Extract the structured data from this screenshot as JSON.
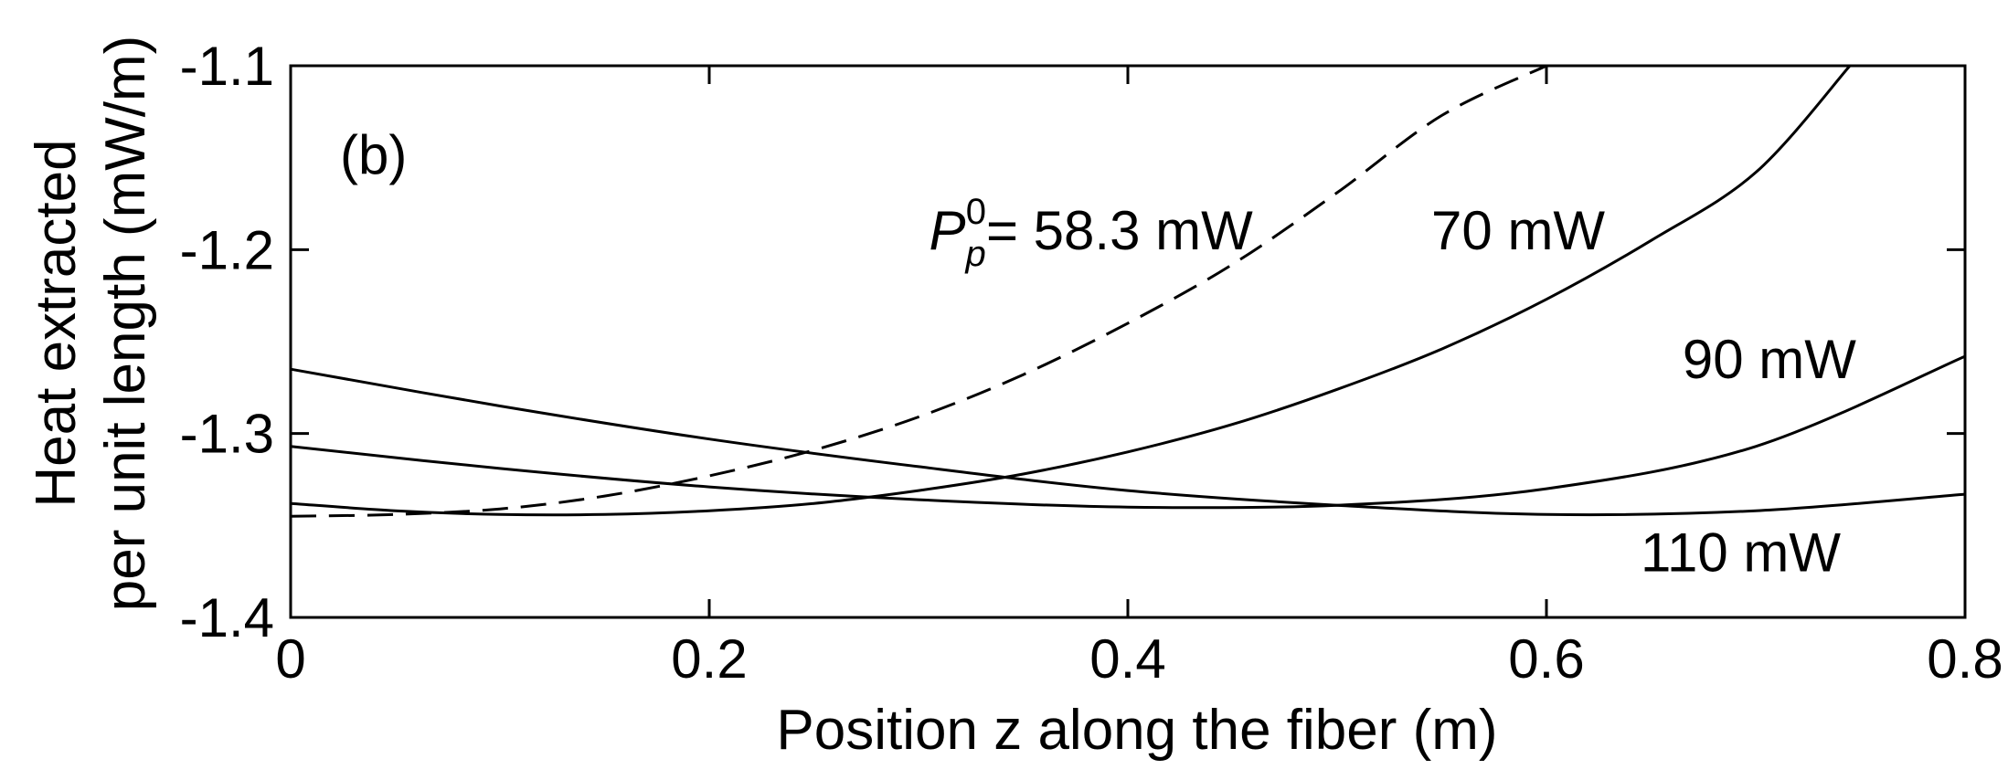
{
  "chart_data": {
    "type": "line",
    "panel_label": "(b)",
    "xlabel": "Position z along the fiber (m)",
    "ylabel_lines": [
      "Heat extracted",
      "per unit length (mW/m)"
    ],
    "xlim": [
      0,
      0.8
    ],
    "ylim": [
      -1.4,
      -1.1
    ],
    "xticks": [
      0,
      0.2,
      0.4,
      0.6,
      0.8
    ],
    "xtick_labels": [
      "0",
      "0.2",
      "0.4",
      "0.6",
      "0.8"
    ],
    "yticks": [
      -1.4,
      -1.3,
      -1.2,
      -1.1
    ],
    "ytick_labels": [
      "-1.4",
      "-1.3",
      "-1.2",
      "-1.1"
    ],
    "grid": false,
    "series": [
      {
        "name": "58.3 mW",
        "dashed": true,
        "x": [
          0,
          0.05,
          0.1,
          0.15,
          0.2,
          0.25,
          0.3,
          0.35,
          0.4,
          0.45,
          0.5,
          0.55,
          0.6
        ],
        "y": [
          -1.345,
          -1.344,
          -1.341,
          -1.334,
          -1.323,
          -1.309,
          -1.291,
          -1.268,
          -1.24,
          -1.208,
          -1.169,
          -1.127,
          -1.1
        ]
      },
      {
        "name": "70 mW",
        "dashed": false,
        "x": [
          0,
          0.05,
          0.1,
          0.15,
          0.2,
          0.25,
          0.3,
          0.35,
          0.4,
          0.45,
          0.5,
          0.55,
          0.6,
          0.65,
          0.7,
          0.745
        ],
        "y": [
          -1.338,
          -1.342,
          -1.344,
          -1.344,
          -1.342,
          -1.338,
          -1.331,
          -1.322,
          -1.31,
          -1.295,
          -1.276,
          -1.254,
          -1.227,
          -1.195,
          -1.158,
          -1.1
        ]
      },
      {
        "name": "90 mW",
        "dashed": false,
        "x": [
          0,
          0.1,
          0.2,
          0.3,
          0.4,
          0.5,
          0.6,
          0.7,
          0.8
        ],
        "y": [
          -1.307,
          -1.319,
          -1.329,
          -1.336,
          -1.34,
          -1.339,
          -1.33,
          -1.307,
          -1.258
        ]
      },
      {
        "name": "110 mW",
        "dashed": false,
        "x": [
          0,
          0.1,
          0.2,
          0.3,
          0.4,
          0.5,
          0.6,
          0.7,
          0.8
        ],
        "y": [
          -1.265,
          -1.285,
          -1.303,
          -1.318,
          -1.331,
          -1.339,
          -1.344,
          -1.342,
          -1.333
        ]
      }
    ],
    "annotations": [
      {
        "text_p": "P",
        "text_sub": "p",
        "text_sup": "0",
        "text_rest": "= 58.3 mW",
        "x": 0.305,
        "y": -1.19
      },
      {
        "text": "70 mW",
        "x": 0.545,
        "y": -1.19
      },
      {
        "text": "90 mW",
        "x": 0.665,
        "y": -1.26
      },
      {
        "text": "110 mW",
        "x": 0.645,
        "y": -1.365
      }
    ]
  }
}
